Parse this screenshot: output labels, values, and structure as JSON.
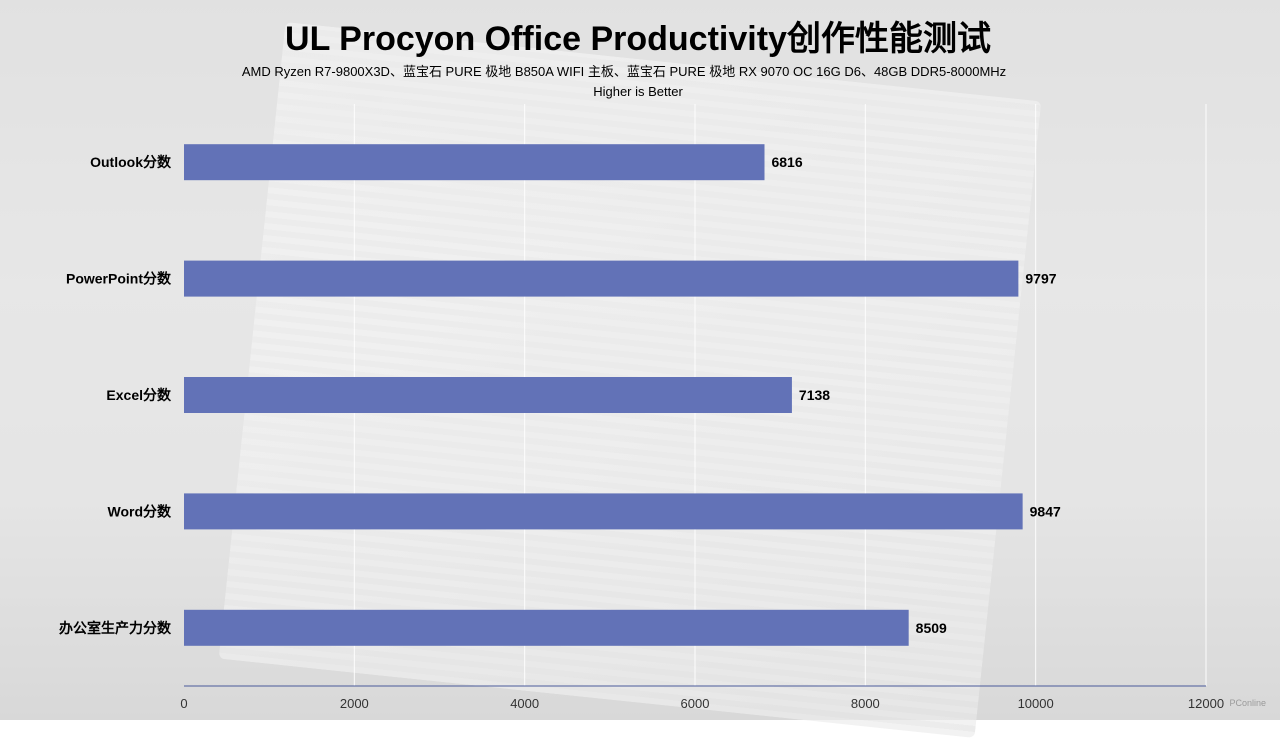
{
  "chart_data": {
    "type": "bar",
    "orientation": "horizontal",
    "title": "UL Procyon Office Productivity创作性能测试",
    "subtitle": "AMD Ryzen R7-9800X3D、蓝宝石 PURE 极地 B850A WIFI 主板、蓝宝石 PURE 极地 RX 9070 OC 16G D6、48GB DDR5-8000MHz",
    "note": "Higher is Better",
    "categories": [
      "Outlook分数",
      "PowerPoint分数",
      "Excel分数",
      "Word分数",
      "办公室生产力分数"
    ],
    "values": [
      6816,
      9797,
      7138,
      9847,
      8509
    ],
    "xlim": [
      0,
      12000
    ],
    "xticks": [
      "0",
      "2000",
      "4000",
      "6000",
      "8000",
      "10000",
      "12000"
    ],
    "grid": true,
    "bar_color": "#6272b7"
  },
  "watermark": "PConline"
}
